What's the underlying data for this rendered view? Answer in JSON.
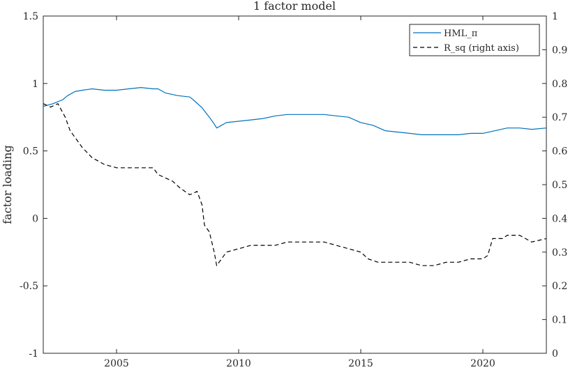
{
  "chart_data": {
    "type": "line",
    "title": "1 factor model",
    "xlabel": "",
    "ylabel": "factor loading",
    "ylabel_right": "",
    "xlim": [
      2002.0,
      2022.6
    ],
    "ylim": [
      -1,
      1.5
    ],
    "ylim_right": [
      0,
      1
    ],
    "xticks": [
      2005,
      2010,
      2015,
      2020
    ],
    "xtick_labels": [
      "2005",
      "2010",
      "2015",
      "2020"
    ],
    "yticks_left": [
      -1,
      -0.5,
      0,
      0.5,
      1,
      1.5
    ],
    "ytick_labels_left": [
      "-1",
      "-0.5",
      "0",
      "0.5",
      "1",
      "1.5"
    ],
    "yticks_right": [
      0,
      0.1,
      0.2,
      0.3,
      0.4,
      0.5,
      0.6,
      0.7,
      0.8,
      0.9,
      1
    ],
    "ytick_labels_right": [
      "0",
      "0.1",
      "0.2",
      "0.3",
      "0.4",
      "0.5",
      "0.6",
      "0.7",
      "0.8",
      "0.9",
      "1"
    ],
    "grid": false,
    "legend_position": "top-right",
    "series": [
      {
        "name": "HML_π",
        "axis": "left",
        "color": "#0072BD",
        "style": "solid",
        "x": [
          2002.0,
          2002.4,
          2002.8,
          2003.0,
          2003.3,
          2003.6,
          2004.0,
          2004.5,
          2005.0,
          2005.5,
          2006.0,
          2006.5,
          2006.7,
          2007.0,
          2007.5,
          2008.0,
          2008.2,
          2008.5,
          2008.8,
          2009.0,
          2009.1,
          2009.3,
          2009.5,
          2010.0,
          2010.5,
          2011.0,
          2011.5,
          2012.0,
          2012.5,
          2013.0,
          2013.5,
          2014.0,
          2014.5,
          2015.0,
          2015.5,
          2016.0,
          2016.5,
          2017.0,
          2017.5,
          2018.0,
          2018.5,
          2019.0,
          2019.5,
          2020.0,
          2020.5,
          2021.0,
          2021.5,
          2022.0,
          2022.6
        ],
        "y": [
          0.83,
          0.85,
          0.88,
          0.91,
          0.94,
          0.95,
          0.96,
          0.95,
          0.95,
          0.96,
          0.97,
          0.96,
          0.96,
          0.93,
          0.91,
          0.9,
          0.87,
          0.82,
          0.75,
          0.7,
          0.67,
          0.69,
          0.71,
          0.72,
          0.73,
          0.74,
          0.76,
          0.77,
          0.77,
          0.77,
          0.77,
          0.76,
          0.75,
          0.71,
          0.69,
          0.65,
          0.64,
          0.63,
          0.62,
          0.62,
          0.62,
          0.62,
          0.63,
          0.63,
          0.65,
          0.67,
          0.67,
          0.66,
          0.67
        ]
      },
      {
        "name": "R_sq (right axis)",
        "axis": "right",
        "color": "#000000",
        "style": "dashed",
        "x": [
          2002.0,
          2002.3,
          2002.6,
          2002.9,
          2003.1,
          2003.3,
          2003.6,
          2004.0,
          2004.5,
          2005.0,
          2005.5,
          2006.0,
          2006.5,
          2006.7,
          2007.0,
          2007.3,
          2007.6,
          2008.0,
          2008.3,
          2008.5,
          2008.6,
          2008.8,
          2009.0,
          2009.1,
          2009.3,
          2009.5,
          2010.0,
          2010.5,
          2011.0,
          2011.5,
          2012.0,
          2012.5,
          2013.0,
          2013.5,
          2014.0,
          2014.5,
          2015.0,
          2015.3,
          2015.7,
          2016.0,
          2016.5,
          2017.0,
          2017.5,
          2018.0,
          2018.5,
          2019.0,
          2019.5,
          2020.0,
          2020.2,
          2020.4,
          2020.8,
          2021.0,
          2021.5,
          2022.0,
          2022.6
        ],
        "y": [
          0.74,
          0.73,
          0.74,
          0.7,
          0.66,
          0.64,
          0.61,
          0.58,
          0.56,
          0.55,
          0.55,
          0.55,
          0.55,
          0.53,
          0.52,
          0.51,
          0.49,
          0.47,
          0.48,
          0.44,
          0.38,
          0.36,
          0.3,
          0.26,
          0.28,
          0.3,
          0.31,
          0.32,
          0.32,
          0.32,
          0.33,
          0.33,
          0.33,
          0.33,
          0.32,
          0.31,
          0.3,
          0.28,
          0.27,
          0.27,
          0.27,
          0.27,
          0.26,
          0.26,
          0.27,
          0.27,
          0.28,
          0.28,
          0.29,
          0.34,
          0.34,
          0.35,
          0.35,
          0.33,
          0.34
        ]
      }
    ]
  }
}
